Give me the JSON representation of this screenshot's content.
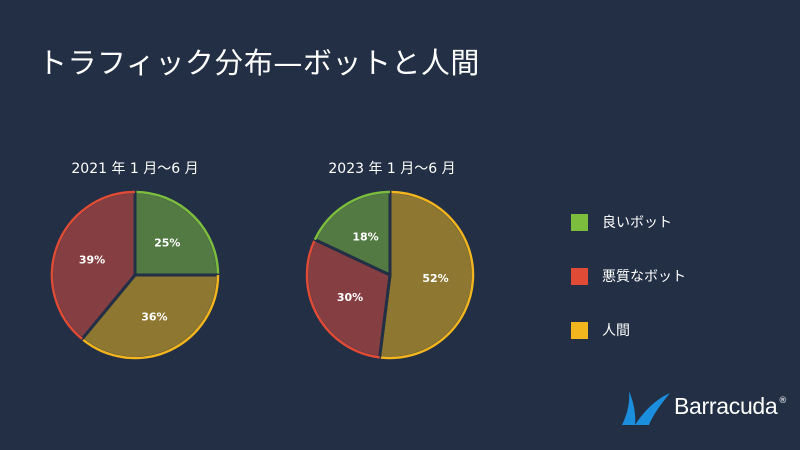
{
  "title": "トラフィック分布—ボットと人間",
  "colors": {
    "good_fill": "#537a42",
    "good_stroke": "#7cbd3e",
    "bad_fill": "#853f42",
    "bad_stroke": "#e04b36",
    "human_fill": "#8e7730",
    "human_stroke": "#f2b51d",
    "background": "#222f45"
  },
  "chart_data": [
    {
      "type": "pie",
      "title": "2021 年 1 月〜6 月",
      "series": [
        {
          "name": "良いボット",
          "value": 25,
          "label": "25%"
        },
        {
          "name": "人間",
          "value": 36,
          "label": "36%"
        },
        {
          "name": "悪質なボット",
          "value": 39,
          "label": "39%"
        }
      ]
    },
    {
      "type": "pie",
      "title": "2023 年 1 月〜6 月",
      "series": [
        {
          "name": "人間",
          "value": 52,
          "label": "52%"
        },
        {
          "name": "悪質なボット",
          "value": 30,
          "label": "30%"
        },
        {
          "name": "良いボット",
          "value": 18,
          "label": "18%"
        }
      ]
    }
  ],
  "legend": {
    "placement": "right",
    "items": [
      {
        "label": "良いボット",
        "key": "good"
      },
      {
        "label": "悪質なボット",
        "key": "bad"
      },
      {
        "label": "人間",
        "key": "human"
      }
    ]
  },
  "logo": {
    "text": "Barracuda",
    "mark": "registered",
    "icon": "barracuda-fin-icon"
  }
}
